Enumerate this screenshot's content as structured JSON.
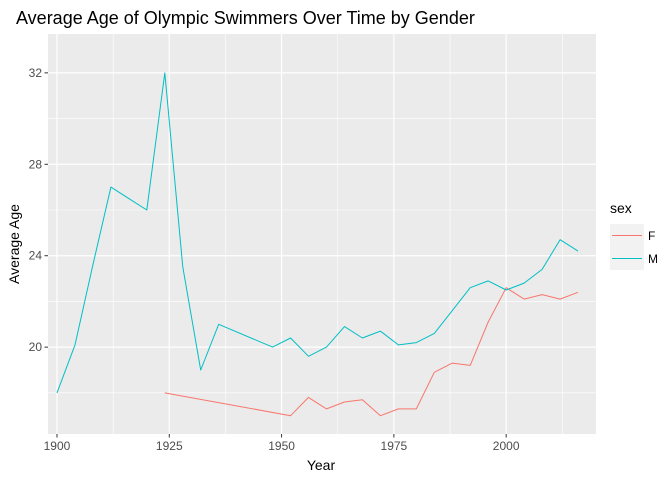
{
  "chart_data": {
    "type": "line",
    "title": "Average Age of Olympic Swimmers Over Time by Gender",
    "xlabel": "Year",
    "ylabel": "Average Age",
    "xlim": [
      1898,
      2020
    ],
    "ylim": [
      16.2,
      33.7
    ],
    "x_ticks": [
      1900,
      1925,
      1950,
      1975,
      2000
    ],
    "y_ticks": [
      20,
      24,
      28,
      32
    ],
    "grid": true,
    "legend": {
      "title": "sex",
      "position": "right"
    },
    "series": [
      {
        "name": "F",
        "color": "#F8766D",
        "x": [
          1924,
          1952,
          1956,
          1960,
          1964,
          1968,
          1972,
          1976,
          1980,
          1984,
          1988,
          1992,
          1996,
          2000,
          2004,
          2008,
          2012,
          2016
        ],
        "y": [
          18.0,
          17.0,
          17.8,
          17.3,
          17.6,
          17.7,
          17.0,
          17.3,
          17.3,
          18.9,
          19.3,
          19.2,
          21.1,
          22.6,
          22.1,
          22.3,
          22.1,
          22.4
        ]
      },
      {
        "name": "M",
        "color": "#00BFC4",
        "x": [
          1900,
          1904,
          1908,
          1912,
          1920,
          1924,
          1928,
          1932,
          1936,
          1948,
          1952,
          1956,
          1960,
          1964,
          1968,
          1972,
          1976,
          1980,
          1984,
          1988,
          1992,
          1996,
          2000,
          2004,
          2008,
          2012,
          2016
        ],
        "y": [
          18.0,
          20.1,
          23.6,
          27.0,
          26.0,
          32.0,
          23.5,
          19.0,
          21.0,
          20.0,
          20.4,
          19.6,
          20.0,
          20.9,
          20.4,
          20.7,
          20.1,
          20.2,
          20.6,
          21.6,
          22.6,
          22.9,
          22.5,
          22.8,
          23.4,
          24.7,
          24.2
        ]
      }
    ]
  }
}
